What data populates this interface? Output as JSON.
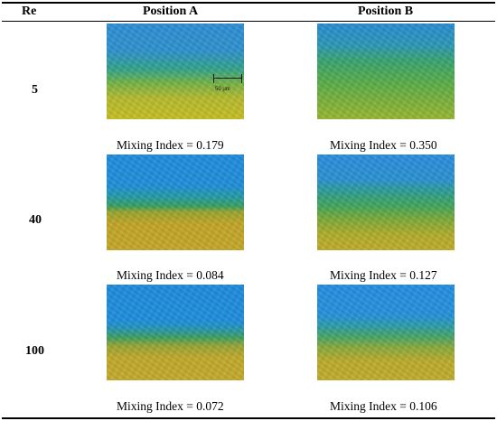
{
  "header": {
    "re": "Re",
    "position_a": "Position A",
    "position_b": "Position B"
  },
  "rows": [
    {
      "re": "5",
      "mixing_a": "Mixing Index = 0.179",
      "mixing_b": "Mixing Index = 0.350"
    },
    {
      "re": "40",
      "mixing_a": "Mixing Index = 0.084",
      "mixing_b": "Mixing Index = 0.127"
    },
    {
      "re": "100",
      "mixing_a": "Mixing Index = 0.072",
      "mixing_b": "Mixing Index = 0.106"
    }
  ],
  "scale_bar": {
    "label": "50 μm"
  },
  "colors": {
    "blue_phase": "#1f8ddf",
    "yellow_phase": "#c5a82b",
    "mixed_green": "#3aa062"
  }
}
